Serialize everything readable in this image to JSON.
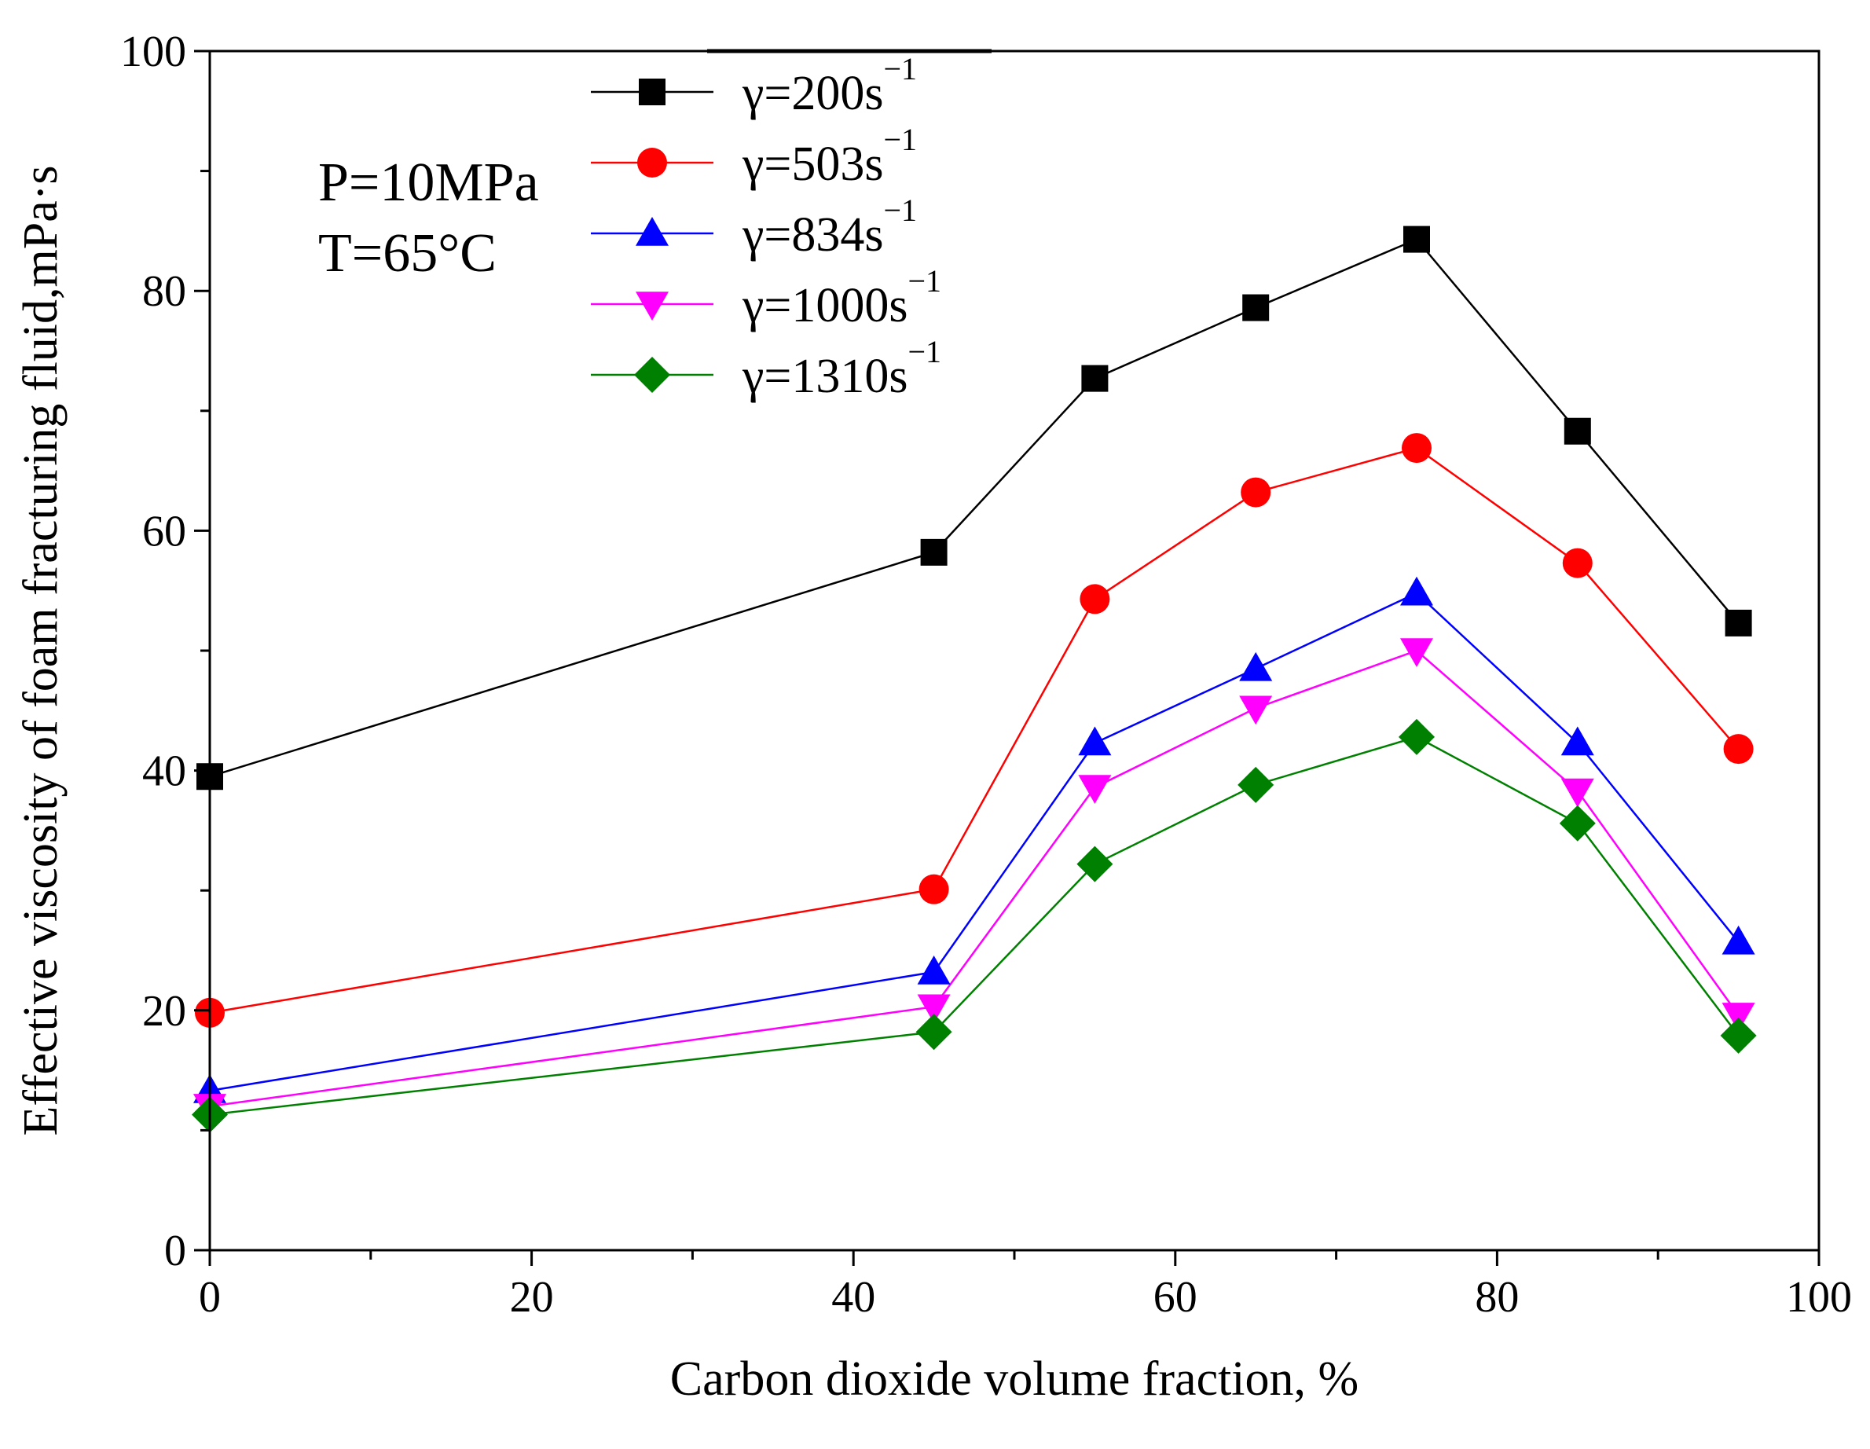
{
  "chart_data": {
    "type": "line",
    "xlabel": "Carbon dioxide volume fraction, %",
    "ylabel": "Effective viscosity of foam fracturing fluid,mPa·s",
    "xlim": [
      0,
      100
    ],
    "ylim": [
      0,
      100
    ],
    "x_ticks": [
      "0",
      "20",
      "40",
      "60",
      "80",
      "100"
    ],
    "y_ticks": [
      "0",
      "20",
      "40",
      "60",
      "80",
      "100"
    ],
    "annotations": [
      "P=10MPa",
      "T=65°C"
    ],
    "legend_position": "top-center",
    "grid": false,
    "x": [
      0,
      45,
      55,
      65,
      75,
      85,
      95
    ],
    "series": [
      {
        "name": "γ=200s",
        "superscript": "−1",
        "color": "#000000",
        "marker": "square",
        "values": [
          39.5,
          58.2,
          72.7,
          78.6,
          84.3,
          68.3,
          52.3
        ]
      },
      {
        "name": "γ=503s",
        "superscript": "−1",
        "color": "#ff0000",
        "marker": "circle",
        "values": [
          19.8,
          30.1,
          54.3,
          63.2,
          66.9,
          57.3,
          41.8
        ]
      },
      {
        "name": "γ=834s",
        "superscript": "−1",
        "color": "#0000ff",
        "marker": "triangle-up",
        "values": [
          13.3,
          23.2,
          42.3,
          48.5,
          54.8,
          42.3,
          25.7
        ]
      },
      {
        "name": "γ=1000s",
        "superscript": "−1",
        "color": "#ff00ff",
        "marker": "triangle-down",
        "values": [
          12.0,
          20.3,
          38.6,
          45.2,
          50.0,
          38.3,
          19.6
        ]
      },
      {
        "name": "γ=1310s",
        "superscript": "−1",
        "color": "#008000",
        "marker": "diamond",
        "values": [
          11.3,
          18.2,
          32.2,
          38.8,
          42.8,
          35.6,
          17.9
        ]
      }
    ]
  }
}
